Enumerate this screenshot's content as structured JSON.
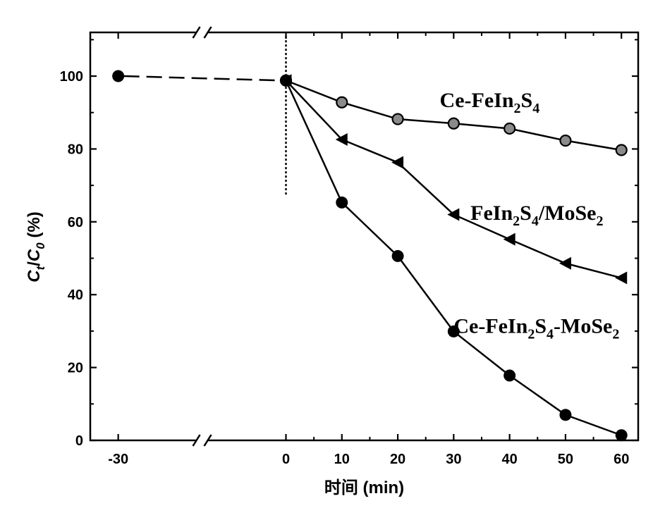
{
  "chart_data": {
    "type": "line",
    "xlabel": "时间 (min)",
    "ylabel": "C_t/C_0 (%)",
    "ylabel_parts": {
      "c1": "C",
      "sub1": "t",
      "slash": "/",
      "c2": "C",
      "sub2": "0",
      "unit": " (%)"
    },
    "xlim": [
      -35,
      63
    ],
    "ylim": [
      0,
      112
    ],
    "x_ticks": [
      -30,
      0,
      10,
      20,
      30,
      40,
      50,
      60
    ],
    "x_tick_labels": [
      "-30",
      "0",
      "10",
      "20",
      "30",
      "40",
      "50",
      "60"
    ],
    "y_ticks": [
      0,
      20,
      40,
      60,
      80,
      100
    ],
    "y_tick_labels": [
      "0",
      "20",
      "40",
      "60",
      "80",
      "100"
    ],
    "axis_break_between": [
      -30,
      0
    ],
    "light_on_marker_x": 0,
    "dark_adsorption_segment": {
      "x": [
        -30,
        0
      ],
      "y": [
        100,
        98.8
      ],
      "style": "dashed"
    },
    "series": [
      {
        "name": "Ce-FeIn2S4",
        "label_parts": [
          {
            "t": "Ce-FeIn",
            "sub": false
          },
          {
            "t": "2",
            "sub": true
          },
          {
            "t": "S",
            "sub": false
          },
          {
            "t": "4",
            "sub": true
          }
        ],
        "marker": "circle-gray",
        "x": [
          0,
          10,
          20,
          30,
          40,
          50,
          60
        ],
        "values": [
          98.8,
          92.8,
          88.2,
          87.0,
          85.6,
          82.3,
          79.7
        ]
      },
      {
        "name": "FeIn2S4/MoSe2",
        "label_parts": [
          {
            "t": "FeIn",
            "sub": false
          },
          {
            "t": "2",
            "sub": true
          },
          {
            "t": "S",
            "sub": false
          },
          {
            "t": "4",
            "sub": true
          },
          {
            "t": "/MoSe",
            "sub": false
          },
          {
            "t": "2",
            "sub": true
          }
        ],
        "marker": "triangle-left",
        "x": [
          0,
          10,
          20,
          30,
          40,
          50,
          60
        ],
        "values": [
          98.8,
          82.6,
          76.3,
          62.0,
          55.2,
          48.6,
          44.6
        ]
      },
      {
        "name": "Ce-FeIn2S4-MoSe2",
        "label_parts": [
          {
            "t": "Ce-FeIn",
            "sub": false
          },
          {
            "t": "2",
            "sub": true
          },
          {
            "t": "S",
            "sub": false
          },
          {
            "t": "4",
            "sub": true
          },
          {
            "t": "-MoSe",
            "sub": false
          },
          {
            "t": "2",
            "sub": true
          }
        ],
        "marker": "circle-black",
        "x": [
          -30,
          0,
          10,
          20,
          30,
          40,
          50,
          60
        ],
        "values": [
          100.0,
          98.8,
          65.3,
          50.6,
          29.9,
          17.8,
          7.0,
          1.4
        ]
      }
    ],
    "series_label_anchor": [
      {
        "x": 27.5,
        "y": 91.5
      },
      {
        "x": 33,
        "y": 60.5
      },
      {
        "x": 30,
        "y": 29.5
      }
    ],
    "grid": false,
    "legend": "inline"
  }
}
